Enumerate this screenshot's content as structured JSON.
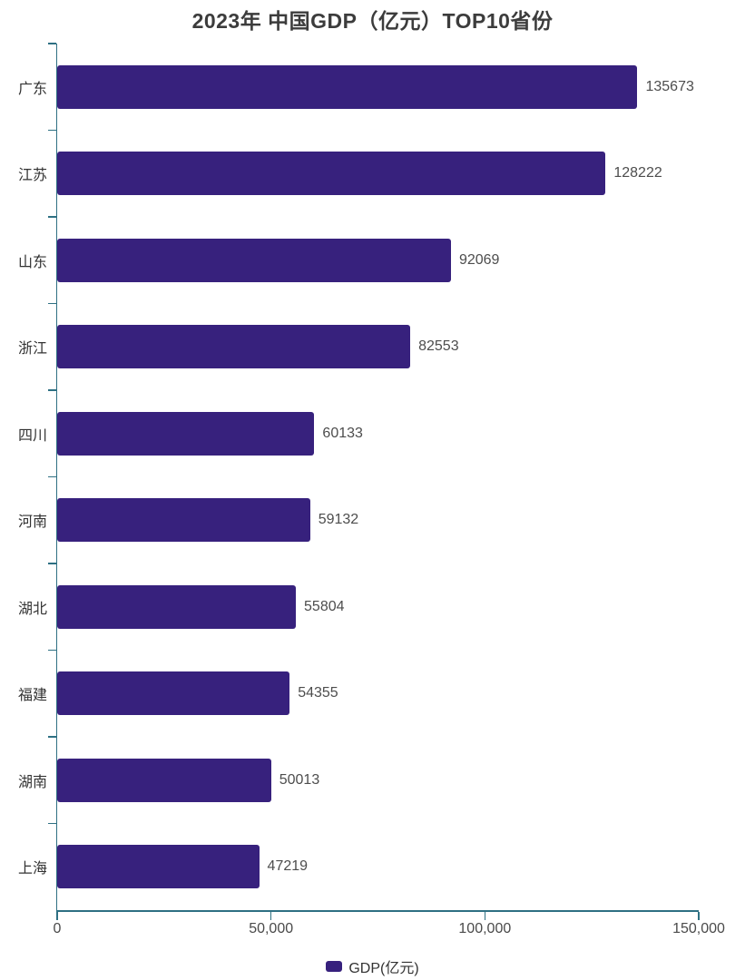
{
  "title": "2023年 中国GDP（亿元）TOP10省份",
  "legend": {
    "label": "GDP(亿元)",
    "position": "bottom"
  },
  "chart_data": {
    "type": "bar",
    "orientation": "horizontal",
    "title": "2023年 中国GDP（亿元）TOP10省份",
    "series_name": "GDP(亿元)",
    "categories": [
      "广东",
      "江苏",
      "山东",
      "浙江",
      "四川",
      "河南",
      "湖北",
      "福建",
      "湖南",
      "上海"
    ],
    "values": [
      135673,
      128222,
      92069,
      82553,
      60133,
      59132,
      55804,
      54355,
      50013,
      47219
    ],
    "xlabel": "",
    "ylabel": "",
    "xlim": [
      0,
      150000
    ],
    "x_tick_values": [
      0,
      50000,
      100000,
      150000
    ],
    "x_tick_labels": [
      "0",
      "50,000",
      "100,000",
      "150,000"
    ],
    "grid": false,
    "bar_color": "#37217D",
    "axis_color": "#2E7083",
    "value_labels_shown": true
  }
}
